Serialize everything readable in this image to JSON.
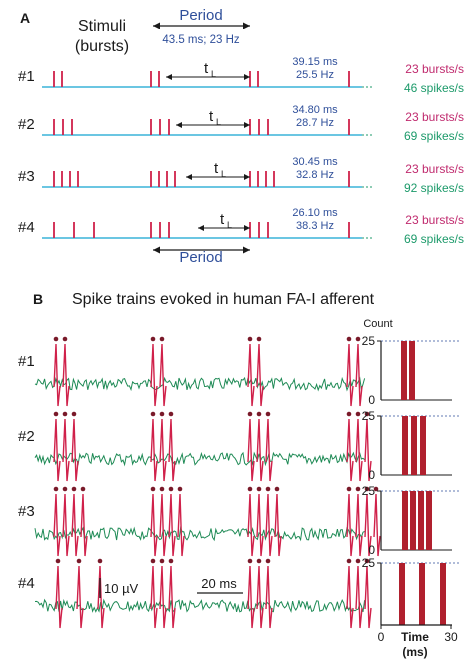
{
  "panel_a": {
    "letter": "A",
    "stimuli_title_line1": "Stimuli",
    "stimuli_title_line2": "(bursts)",
    "period_top_label": "Period",
    "period_box_text": "43.5 ms; 23 Hz",
    "period_bottom_label": "Period",
    "latency_label": "t",
    "latency_subscript": "L",
    "rows": [
      {
        "label": "#1",
        "latency": "39.15 ms",
        "freq": "25.5 Hz",
        "burst_rate": "23 bursts/s",
        "spike_rate": "46 spikes/s",
        "spikes_per_burst": 2
      },
      {
        "label": "#2",
        "latency": "34.80 ms",
        "freq": "28.7 Hz",
        "burst_rate": "23 bursts/s",
        "spike_rate": "69 spikes/s",
        "spikes_per_burst": 3
      },
      {
        "label": "#3",
        "latency": "30.45 ms",
        "freq": "32.8 Hz",
        "burst_rate": "23 bursts/s",
        "spike_rate": "92 spikes/s",
        "spikes_per_burst": 4
      },
      {
        "label": "#4",
        "latency": "26.10 ms",
        "freq": "38.3 Hz",
        "burst_rate": "23 bursts/s",
        "spike_rate": "69 spikes/s",
        "spikes_per_burst": 3
      }
    ]
  },
  "panel_b": {
    "letter": "B",
    "title": "Spike trains evoked in human FA-I afferent",
    "rows": [
      {
        "label": "#1"
      },
      {
        "label": "#2"
      },
      {
        "label": "#3"
      },
      {
        "label": "#4"
      }
    ],
    "scale_voltage": "10 µV",
    "scale_time": "20 ms",
    "histogram": {
      "count_label": "Count",
      "y_ticks": [
        "25",
        "0"
      ],
      "x_ticks": [
        "0",
        "30"
      ],
      "x_label_line1": "Time",
      "x_label_line2": "(ms)"
    }
  },
  "colors": {
    "stimulus_spike": "#d0214a",
    "baseline": "#3ab4d9",
    "blue_text": "#2f4f9a",
    "pink_text": "#c02a6e",
    "green_text": "#1c9a6a",
    "trace": "#1e8a55",
    "spike_trace": "#d0214a",
    "dot": "#7a1a2a",
    "bar": "#b0202e"
  }
}
